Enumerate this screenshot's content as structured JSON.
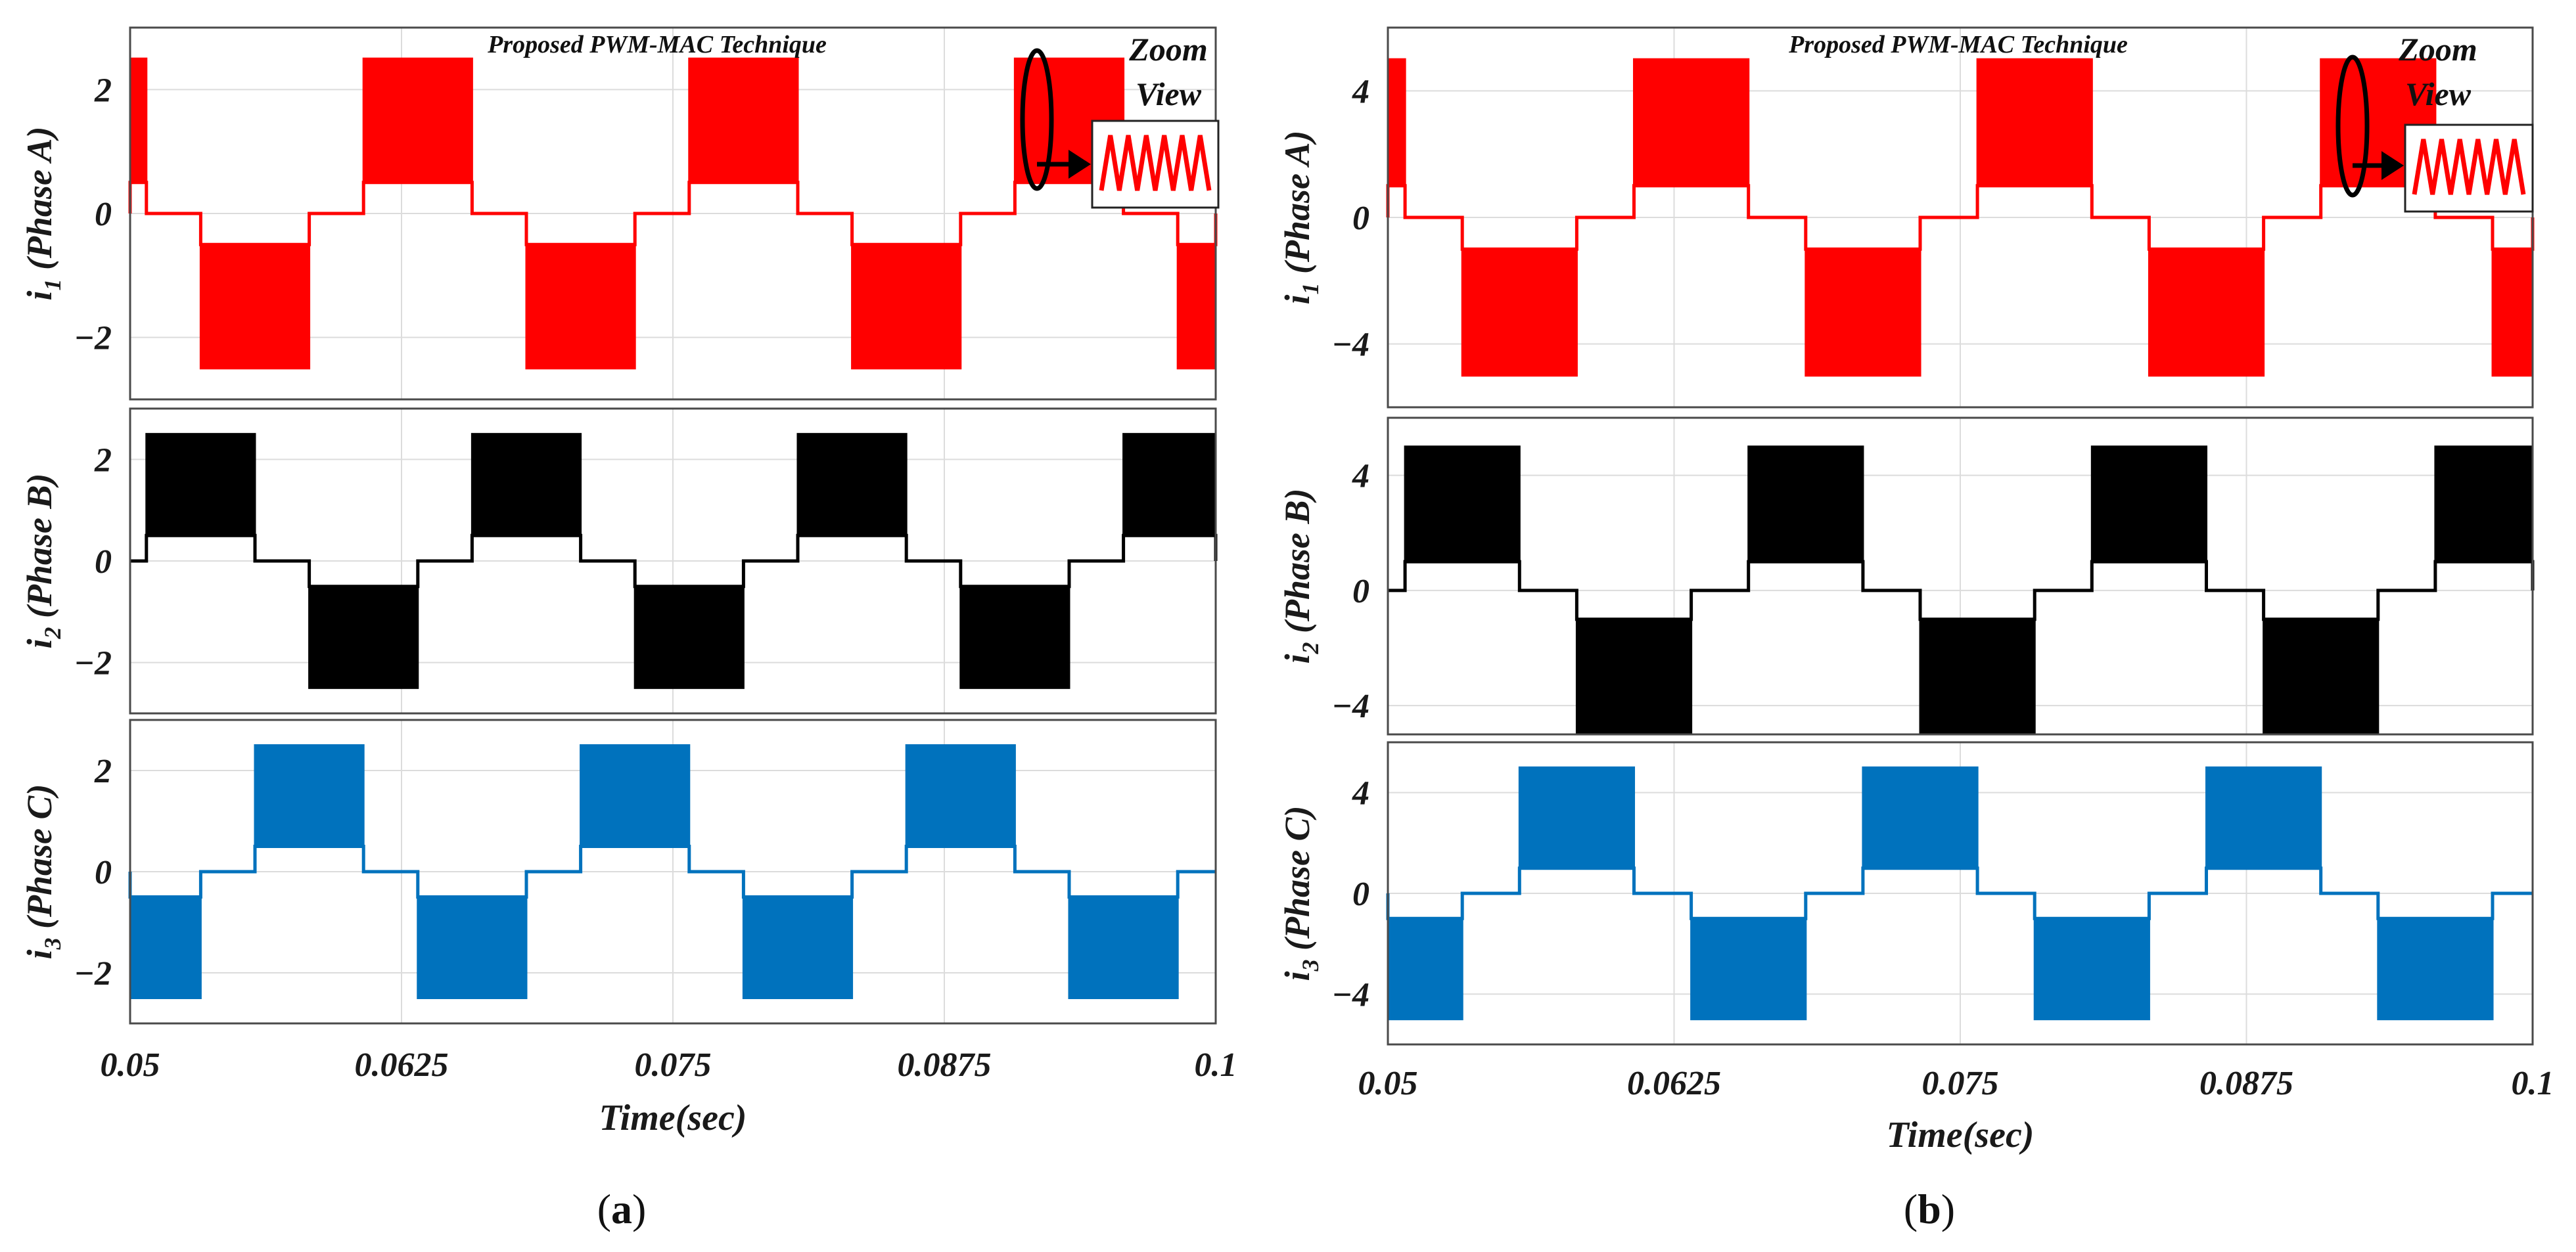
{
  "chart_data": [
    {
      "panel_label": "a",
      "title": "Proposed PWM-MAC Technique",
      "annotation": {
        "line1": "Zoom",
        "line2": "View"
      },
      "xlabel": "Time(sec)",
      "x_ticks": [
        0.05,
        0.0625,
        0.075,
        0.0875,
        0.1
      ],
      "x_tick_labels": [
        "0.05",
        "0.0625",
        "0.075",
        "0.0875",
        "0.1"
      ],
      "xlim": [
        0.05,
        0.1
      ],
      "grid": true,
      "subplots": [
        {
          "type": "line",
          "ylabel": {
            "symbol": "i",
            "sub": "1",
            "rest": " (Phase A)"
          },
          "color": "#ff0000",
          "phase_offset_deg": 0,
          "ylim": [
            -3,
            3
          ],
          "y_ticks": [
            -2,
            0,
            2
          ],
          "y_tick_labels": [
            "−2",
            "0",
            "2"
          ],
          "levels": {
            "high_max": 2.5,
            "high_min": 0.5,
            "low_max": -0.5,
            "low_min": -2.5
          }
        },
        {
          "type": "line",
          "ylabel": {
            "symbol": "i",
            "sub": "2",
            "rest": " (Phase B)"
          },
          "color": "#000000",
          "phase_offset_deg": 120,
          "ylim": [
            -3,
            3
          ],
          "y_ticks": [
            -2,
            0,
            2
          ],
          "y_tick_labels": [
            "−2",
            "0",
            "2"
          ],
          "levels": {
            "high_max": 2.5,
            "high_min": 0.5,
            "low_max": -0.5,
            "low_min": -2.5
          }
        },
        {
          "type": "line",
          "ylabel": {
            "symbol": "i",
            "sub": "3",
            "rest": " (Phase C)"
          },
          "color": "#0072bd",
          "phase_offset_deg": 240,
          "ylim": [
            -3,
            3
          ],
          "y_ticks": [
            -2,
            0,
            2
          ],
          "y_tick_labels": [
            "−2",
            "0",
            "2"
          ],
          "levels": {
            "high_max": 2.5,
            "high_min": 0.5,
            "low_max": -0.5,
            "low_min": -2.5
          }
        }
      ],
      "waveform": {
        "fundamental_period_s": 0.015,
        "conduction_deg": 120,
        "chopper": "high-frequency PWM between level pairs"
      }
    },
    {
      "panel_label": "b",
      "title": "Proposed PWM-MAC Technique",
      "annotation": {
        "line1": "Zoom",
        "line2": "View"
      },
      "xlabel": "Time(sec)",
      "x_ticks": [
        0.05,
        0.0625,
        0.075,
        0.0875,
        0.1
      ],
      "x_tick_labels": [
        "0.05",
        "0.0625",
        "0.075",
        "0.0875",
        "0.1"
      ],
      "xlim": [
        0.05,
        0.1
      ],
      "grid": true,
      "subplots": [
        {
          "type": "line",
          "ylabel": {
            "symbol": "i",
            "sub": "1",
            "rest": " (Phase A)"
          },
          "color": "#ff0000",
          "phase_offset_deg": 0,
          "ylim": [
            -6,
            6
          ],
          "y_ticks": [
            -4,
            0,
            4
          ],
          "y_tick_labels": [
            "−4",
            "0",
            "4"
          ],
          "levels": {
            "high_max": 5,
            "high_min": 1,
            "low_max": -1,
            "low_min": -5
          }
        },
        {
          "type": "line",
          "ylabel": {
            "symbol": "i",
            "sub": "2",
            "rest": " (Phase B)"
          },
          "color": "#000000",
          "phase_offset_deg": 120,
          "ylim": [
            -5,
            6
          ],
          "y_ticks": [
            -4,
            0,
            4
          ],
          "y_tick_labels": [
            "−4",
            "0",
            "4"
          ],
          "levels": {
            "high_max": 5,
            "high_min": 1,
            "low_max": -1,
            "low_min": -5
          }
        },
        {
          "type": "line",
          "ylabel": {
            "symbol": "i",
            "sub": "3",
            "rest": " (Phase C)"
          },
          "color": "#0072bd",
          "phase_offset_deg": 240,
          "ylim": [
            -6,
            6
          ],
          "y_ticks": [
            -4,
            0,
            4
          ],
          "y_tick_labels": [
            "−4",
            "0",
            "4"
          ],
          "levels": {
            "high_max": 5,
            "high_min": 1,
            "low_max": -1,
            "low_min": -5
          }
        }
      ],
      "waveform": {
        "fundamental_period_s": 0.015,
        "conduction_deg": 120,
        "chopper": "high-frequency PWM between level pairs"
      }
    }
  ]
}
